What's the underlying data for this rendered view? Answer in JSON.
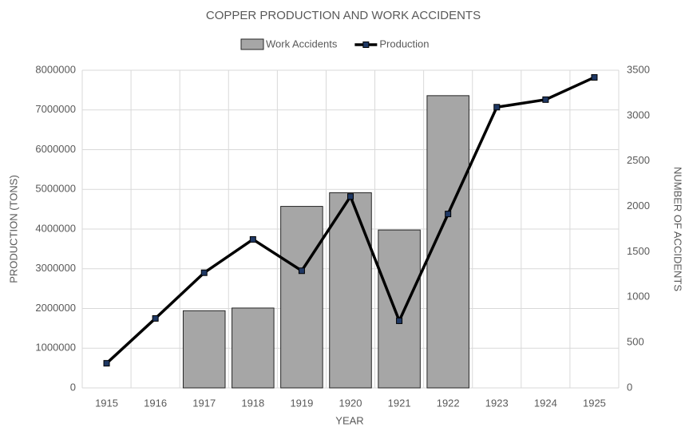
{
  "chart_data": {
    "type": "bar_line",
    "title": "COPPER PRODUCTION AND WORK ACCIDENTS",
    "categories": [
      "1915",
      "1916",
      "1917",
      "1918",
      "1919",
      "1920",
      "1921",
      "1922",
      "1923",
      "1924",
      "1925"
    ],
    "series": [
      {
        "name": "Work Accidents",
        "type": "bar",
        "axis": "y2",
        "color": "#a6a6a6",
        "values": [
          null,
          null,
          850,
          880,
          2000,
          2150,
          1740,
          3220,
          null,
          null,
          null
        ]
      },
      {
        "name": "Production",
        "type": "line",
        "axis": "y",
        "color": "#000000",
        "marker_color": "#1f3864",
        "values": [
          620000,
          1750000,
          2900000,
          3740000,
          2950000,
          4820000,
          1690000,
          4380000,
          7070000,
          7260000,
          7820000
        ]
      }
    ],
    "xlabel": "YEAR",
    "ylabel": "PRODUCTION (TONS)",
    "y2label": "NUMBER OF ACCIDENTS",
    "ylim": [
      0,
      8000000
    ],
    "yticks": [
      0,
      1000000,
      2000000,
      3000000,
      4000000,
      5000000,
      6000000,
      7000000,
      8000000
    ],
    "y2lim": [
      0,
      3500
    ],
    "y2ticks": [
      0,
      500,
      1000,
      1500,
      2000,
      2500,
      3000,
      3500
    ],
    "grid": true,
    "legend": "top"
  }
}
